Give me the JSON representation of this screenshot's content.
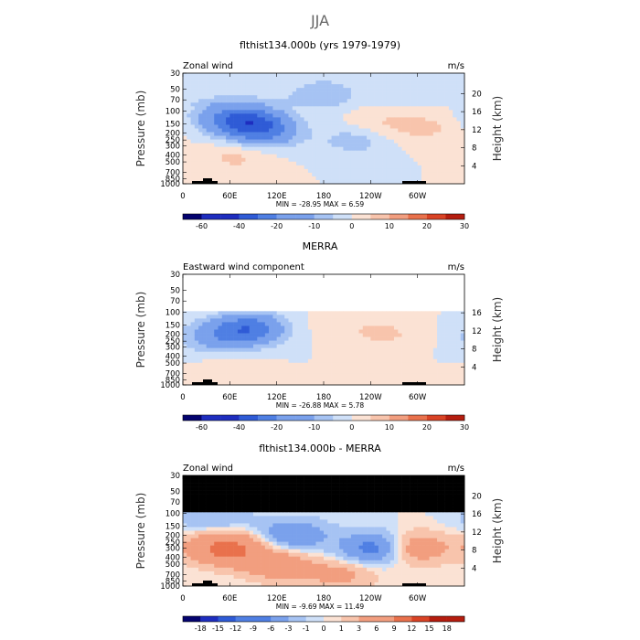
{
  "figure": {
    "season_title": "JJA"
  },
  "colors": {
    "blues": [
      "#04036f",
      "#1e2dbf",
      "#2f5bd6",
      "#4f7fe3",
      "#7aa1ec",
      "#a6c3f3",
      "#cfe0f8"
    ],
    "reds": [
      "#fbe2d4",
      "#f8c4ac",
      "#f29e7f",
      "#e9714c",
      "#d94325",
      "#b51d0f",
      "#7a0505"
    ],
    "mask": "#000000",
    "topography": "#000000"
  },
  "chart_data": [
    {
      "type": "heatmap",
      "title": "flthist134.000b (yrs 1979-1979)",
      "field_label": "Zonal wind",
      "units": "m/s",
      "ylabel": "Pressure (mb)",
      "y2label": "Height (km)",
      "x_ticks": [
        "0",
        "60E",
        "120E",
        "180",
        "120W",
        "60W"
      ],
      "y_ticks": [
        "30",
        "50",
        "70",
        "100",
        "150",
        "200",
        "250",
        "300",
        "400",
        "500",
        "700",
        "850",
        "1000"
      ],
      "height_ticks": [
        "4",
        "8",
        "12",
        "16",
        "20"
      ],
      "stats": {
        "min": "-28.95",
        "max": "6.59",
        "text": "MIN = -28.95   MAX =   6.59"
      },
      "levels": [
        -70,
        -60,
        -50,
        -40,
        -30,
        -20,
        -15,
        -10,
        -5,
        0,
        5,
        10,
        15,
        20,
        25,
        30
      ],
      "colorbar_labels": [
        "-60",
        "-40",
        "-20",
        "-10",
        "0",
        "10",
        "20",
        "30"
      ],
      "features": [
        {
          "lon": 90,
          "p": 150,
          "value": -28.95
        },
        {
          "lon": 55,
          "p": 120,
          "value": -15
        },
        {
          "lon": 110,
          "p": 220,
          "value": -10
        },
        {
          "lon": 70,
          "p": 420,
          "value": 6.59
        },
        {
          "lon": 250,
          "p": 150,
          "value": 5
        },
        {
          "lon": 310,
          "p": 170,
          "value": 6
        },
        {
          "lon": 220,
          "p": 250,
          "value": -8
        },
        {
          "lon": 180,
          "p": 60,
          "value": -6
        }
      ]
    },
    {
      "type": "heatmap",
      "title": "MERRA",
      "field_label": "Eastward wind component",
      "units": "m/s",
      "ylabel": "Pressure (mb)",
      "y2label": "Height (km)",
      "x_ticks": [
        "0",
        "60E",
        "120E",
        "180",
        "120W",
        "60W"
      ],
      "y_ticks": [
        "30",
        "50",
        "70",
        "100",
        "150",
        "200",
        "250",
        "300",
        "400",
        "500",
        "700",
        "850",
        "1000"
      ],
      "height_ticks": [
        "4",
        "8",
        "12",
        "16"
      ],
      "stats": {
        "min": "-26.88",
        "max": "5.78",
        "text": "MIN = -26.88   MAX =   5.78"
      },
      "levels": [
        -70,
        -60,
        -50,
        -40,
        -30,
        -20,
        -15,
        -10,
        -5,
        0,
        5,
        10,
        15,
        20,
        25,
        30
      ],
      "colorbar_labels": [
        "-60",
        "-40",
        "-20",
        "-10",
        "0",
        "10",
        "20",
        "30"
      ],
      "data_top_pressure": 100,
      "features": [
        {
          "lon": 85,
          "p": 170,
          "value": -26.88
        },
        {
          "lon": 40,
          "p": 220,
          "value": -12
        },
        {
          "lon": 260,
          "p": 200,
          "value": 5.78
        },
        {
          "lon": 200,
          "p": 150,
          "value": 3
        },
        {
          "lon": 60,
          "p": 700,
          "value": 4
        }
      ]
    },
    {
      "type": "heatmap",
      "title": "flthist134.000b - MERRA",
      "field_label": "Zonal wind",
      "units": "m/s",
      "ylabel": "Pressure (mb)",
      "y2label": "Height (km)",
      "x_ticks": [
        "0",
        "60E",
        "120E",
        "180",
        "120W",
        "60W"
      ],
      "y_ticks": [
        "30",
        "50",
        "70",
        "100",
        "150",
        "200",
        "250",
        "300",
        "400",
        "500",
        "700",
        "850",
        "1000"
      ],
      "height_ticks": [
        "4",
        "8",
        "12",
        "16",
        "20"
      ],
      "stats": {
        "min": "-9.69",
        "max": "11.49",
        "text": "MIN = -9.69   MAX =  11.49"
      },
      "levels": [
        -21,
        -18,
        -15,
        -12,
        -9,
        -6,
        -3,
        -1,
        0,
        1,
        3,
        6,
        9,
        12,
        15,
        18,
        21
      ],
      "colorbar_labels": [
        "-18",
        "-15",
        "-12",
        "-9",
        "-6",
        "-3",
        "-1",
        "0",
        "1",
        "3",
        "6",
        "9",
        "12",
        "15",
        "18"
      ],
      "masked_above_pressure": 100,
      "features": [
        {
          "lon": 55,
          "p": 300,
          "value": 11.49
        },
        {
          "lon": 120,
          "p": 500,
          "value": 6
        },
        {
          "lon": 290,
          "p": 300,
          "value": 8
        },
        {
          "lon": 250,
          "p": 300,
          "value": -9.69
        },
        {
          "lon": 140,
          "p": 200,
          "value": -6
        },
        {
          "lon": 40,
          "p": 120,
          "value": -3
        },
        {
          "lon": 200,
          "p": 700,
          "value": 4
        }
      ]
    }
  ]
}
